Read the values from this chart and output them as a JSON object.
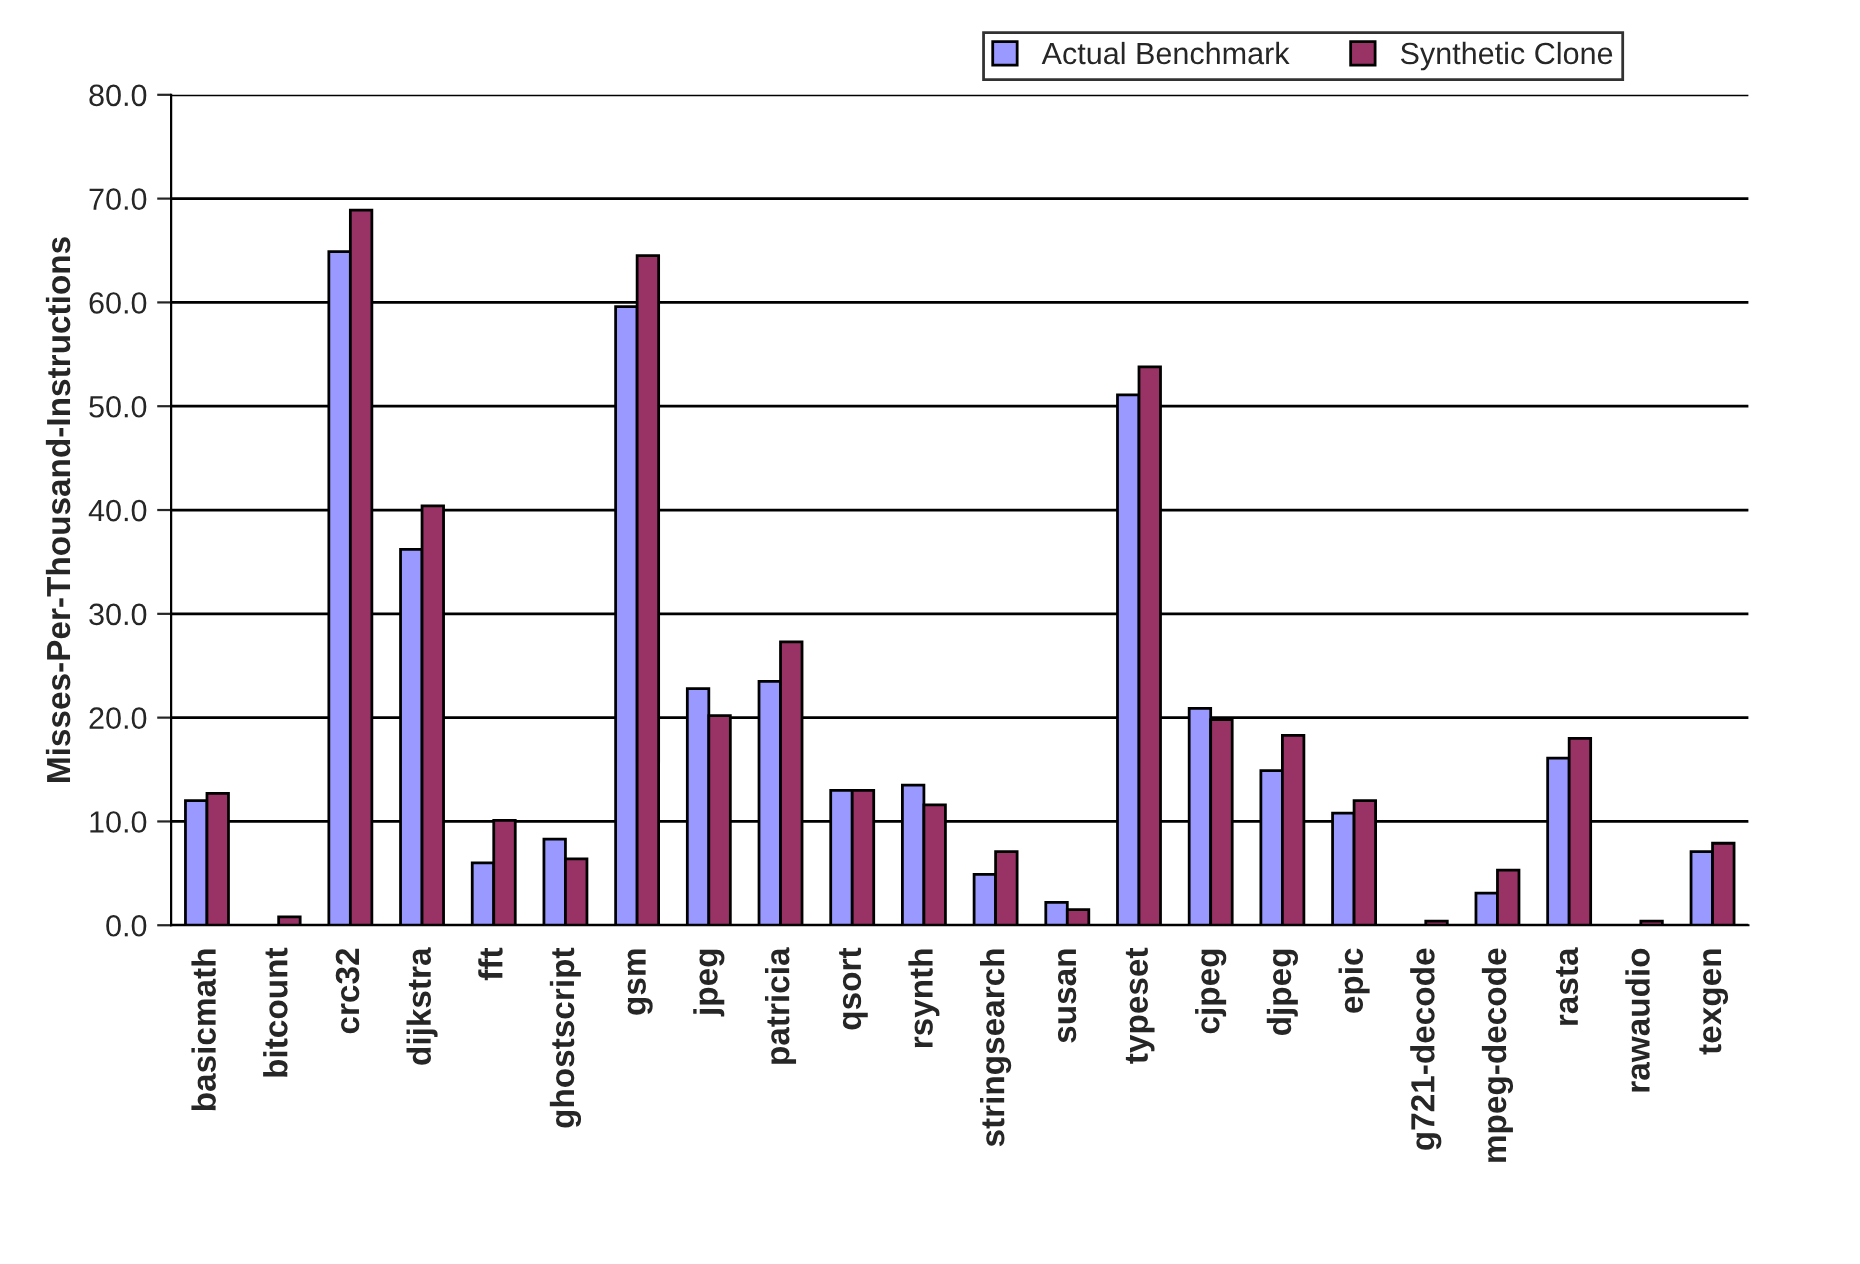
{
  "chart_data": {
    "type": "bar",
    "ylabel": "Misses-Per-Thousand-Instructions",
    "categories": [
      "basicmath",
      "bitcount",
      "crc32",
      "dijkstra",
      "fft",
      "ghostscript",
      "gsm",
      "jpeg",
      "patricia",
      "qsort",
      "rsynth",
      "stringsearch",
      "susan",
      "typeset",
      "cjpeg",
      "djpeg",
      "epic",
      "g721-decode",
      "mpeg-decode",
      "rasta",
      "rawaudio",
      "texgen"
    ],
    "series": [
      {
        "name": "Actual Benchmark",
        "color": "#9999ff",
        "values": [
          12.0,
          null,
          64.9,
          36.2,
          6.0,
          8.3,
          59.6,
          22.8,
          23.5,
          13.0,
          13.5,
          4.9,
          2.2,
          51.1,
          20.9,
          14.9,
          10.8,
          null,
          3.1,
          16.1,
          null,
          7.1
        ]
      },
      {
        "name": "Synthetic Clone",
        "color": "#993366",
        "values": [
          12.7,
          0.8,
          68.9,
          40.4,
          10.1,
          6.4,
          64.5,
          20.2,
          27.3,
          13.0,
          11.6,
          7.1,
          1.5,
          53.8,
          19.8,
          18.3,
          12.0,
          0.4,
          5.3,
          18.0,
          0.4,
          7.9
        ]
      }
    ],
    "ylim": [
      0,
      80
    ],
    "yticks": [
      {
        "value": 0,
        "label": "0.0"
      },
      {
        "value": 10,
        "label": "10.0"
      },
      {
        "value": 20,
        "label": "20.0"
      },
      {
        "value": 30,
        "label": "30.0"
      },
      {
        "value": 40,
        "label": "40.0"
      },
      {
        "value": 50,
        "label": "50.0"
      },
      {
        "value": 60,
        "label": "60.0"
      },
      {
        "value": 70,
        "label": "70.0"
      },
      {
        "value": 80,
        "label": "80.0"
      }
    ],
    "grid": "y",
    "legend": "top right"
  }
}
